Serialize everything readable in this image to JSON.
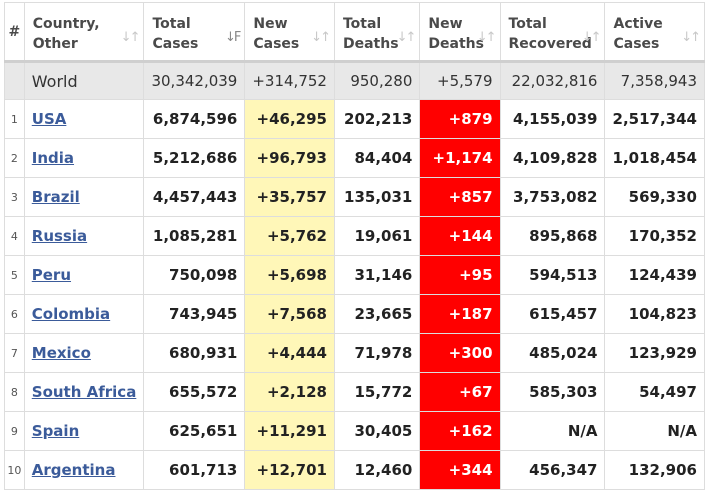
{
  "header": {
    "num": "#",
    "country": [
      "Country,",
      "Other"
    ],
    "total_cases": [
      "Total",
      "Cases"
    ],
    "new_cases": [
      "New",
      "Cases"
    ],
    "total_deaths": [
      "Total",
      "Deaths"
    ],
    "new_deaths": [
      "New",
      "Deaths"
    ],
    "total_recovered": [
      "Total",
      "Recovered"
    ],
    "active_cases": [
      "Active",
      "Cases"
    ]
  },
  "sort_icons": {
    "default": "↓↑",
    "active": "↓F"
  },
  "world": {
    "country": "World",
    "total_cases": "30,342,039",
    "new_cases": "+314,752",
    "total_deaths": "950,280",
    "new_deaths": "+5,579",
    "total_recovered": "22,032,816",
    "active_cases": "7,358,943"
  },
  "rows": [
    {
      "num": "1",
      "country": "USA",
      "total_cases": "6,874,596",
      "new_cases": "+46,295",
      "total_deaths": "202,213",
      "new_deaths": "+879",
      "total_recovered": "4,155,039",
      "active_cases": "2,517,344"
    },
    {
      "num": "2",
      "country": "India",
      "total_cases": "5,212,686",
      "new_cases": "+96,793",
      "total_deaths": "84,404",
      "new_deaths": "+1,174",
      "total_recovered": "4,109,828",
      "active_cases": "1,018,454"
    },
    {
      "num": "3",
      "country": "Brazil",
      "total_cases": "4,457,443",
      "new_cases": "+35,757",
      "total_deaths": "135,031",
      "new_deaths": "+857",
      "total_recovered": "3,753,082",
      "active_cases": "569,330"
    },
    {
      "num": "4",
      "country": "Russia",
      "total_cases": "1,085,281",
      "new_cases": "+5,762",
      "total_deaths": "19,061",
      "new_deaths": "+144",
      "total_recovered": "895,868",
      "active_cases": "170,352"
    },
    {
      "num": "5",
      "country": "Peru",
      "total_cases": "750,098",
      "new_cases": "+5,698",
      "total_deaths": "31,146",
      "new_deaths": "+95",
      "total_recovered": "594,513",
      "active_cases": "124,439"
    },
    {
      "num": "6",
      "country": "Colombia",
      "total_cases": "743,945",
      "new_cases": "+7,568",
      "total_deaths": "23,665",
      "new_deaths": "+187",
      "total_recovered": "615,457",
      "active_cases": "104,823"
    },
    {
      "num": "7",
      "country": "Mexico",
      "total_cases": "680,931",
      "new_cases": "+4,444",
      "total_deaths": "71,978",
      "new_deaths": "+300",
      "total_recovered": "485,024",
      "active_cases": "123,929"
    },
    {
      "num": "8",
      "country": "South Africa",
      "total_cases": "655,572",
      "new_cases": "+2,128",
      "total_deaths": "15,772",
      "new_deaths": "+67",
      "total_recovered": "585,303",
      "active_cases": "54,497"
    },
    {
      "num": "9",
      "country": "Spain",
      "total_cases": "625,651",
      "new_cases": "+11,291",
      "total_deaths": "30,405",
      "new_deaths": "+162",
      "total_recovered": "N/A",
      "active_cases": "N/A"
    },
    {
      "num": "10",
      "country": "Argentina",
      "total_cases": "601,713",
      "new_cases": "+12,701",
      "total_deaths": "12,460",
      "new_deaths": "+344",
      "total_recovered": "456,347",
      "active_cases": "132,906"
    }
  ],
  "colors": {
    "new_cases_bg": "#fff7b8",
    "new_deaths_bg": "#ff0000",
    "world_row_bg": "#e8e8e8",
    "link": "#3b5b9a"
  }
}
